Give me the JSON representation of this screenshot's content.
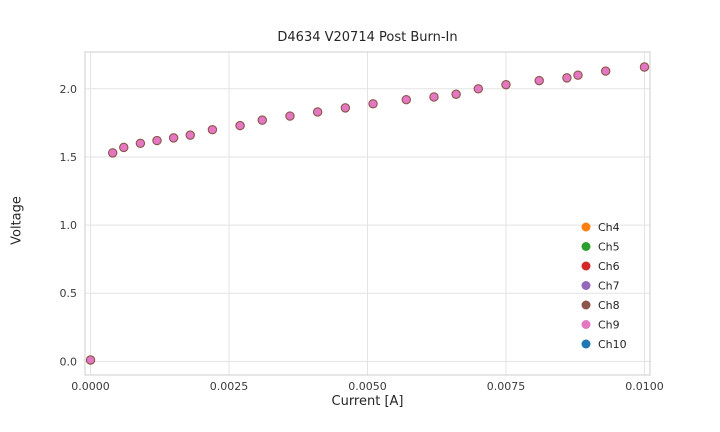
{
  "chart_data": {
    "type": "scatter",
    "title": "D4634 V20714 Post Burn-In",
    "xlabel": "Current [A]",
    "ylabel": "Voltage",
    "xlim": [
      -0.0001,
      0.0101
    ],
    "ylim": [
      -0.1,
      2.27
    ],
    "grid": true,
    "x_ticks": {
      "values": [
        0.0,
        0.0025,
        0.005,
        0.0075,
        0.01
      ],
      "labels": [
        "0.0000",
        "0.0025",
        "0.0050",
        "0.0075",
        "0.0100"
      ]
    },
    "y_ticks": {
      "values": [
        0.0,
        0.5,
        1.0,
        1.5,
        2.0
      ],
      "labels": [
        "0.0",
        "0.5",
        "1.0",
        "1.5",
        "2.0"
      ]
    },
    "x": [
      0.0,
      0.0004,
      0.0006,
      0.0009,
      0.0012,
      0.0015,
      0.0018,
      0.0022,
      0.0027,
      0.0031,
      0.0036,
      0.0041,
      0.0046,
      0.0051,
      0.0057,
      0.0062,
      0.0066,
      0.007,
      0.0075,
      0.0081,
      0.0086,
      0.0088,
      0.0093,
      0.01
    ],
    "y": [
      0.01,
      1.53,
      1.57,
      1.6,
      1.62,
      1.64,
      1.66,
      1.7,
      1.73,
      1.77,
      1.8,
      1.83,
      1.86,
      1.89,
      1.92,
      1.94,
      1.96,
      2.0,
      2.03,
      2.06,
      2.08,
      2.1,
      2.13,
      2.16
    ],
    "marker": {
      "fill": "#e377c2",
      "edge": "#8c564b",
      "radius": 4.0,
      "edge_width": 1.2
    },
    "legend": {
      "position": "lower right",
      "entries": [
        {
          "label": "Ch4",
          "color": "#ff7f0e"
        },
        {
          "label": "Ch5",
          "color": "#2ca02c"
        },
        {
          "label": "Ch6",
          "color": "#d62728"
        },
        {
          "label": "Ch7",
          "color": "#9467bd"
        },
        {
          "label": "Ch8",
          "color": "#8c564b"
        },
        {
          "label": "Ch9",
          "color": "#e377c2"
        },
        {
          "label": "Ch10",
          "color": "#1f77b4"
        }
      ]
    },
    "colors": {
      "grid": "#e3e3e3",
      "border": "#d6d6d6",
      "tick_text": "#3b3b3b"
    }
  }
}
